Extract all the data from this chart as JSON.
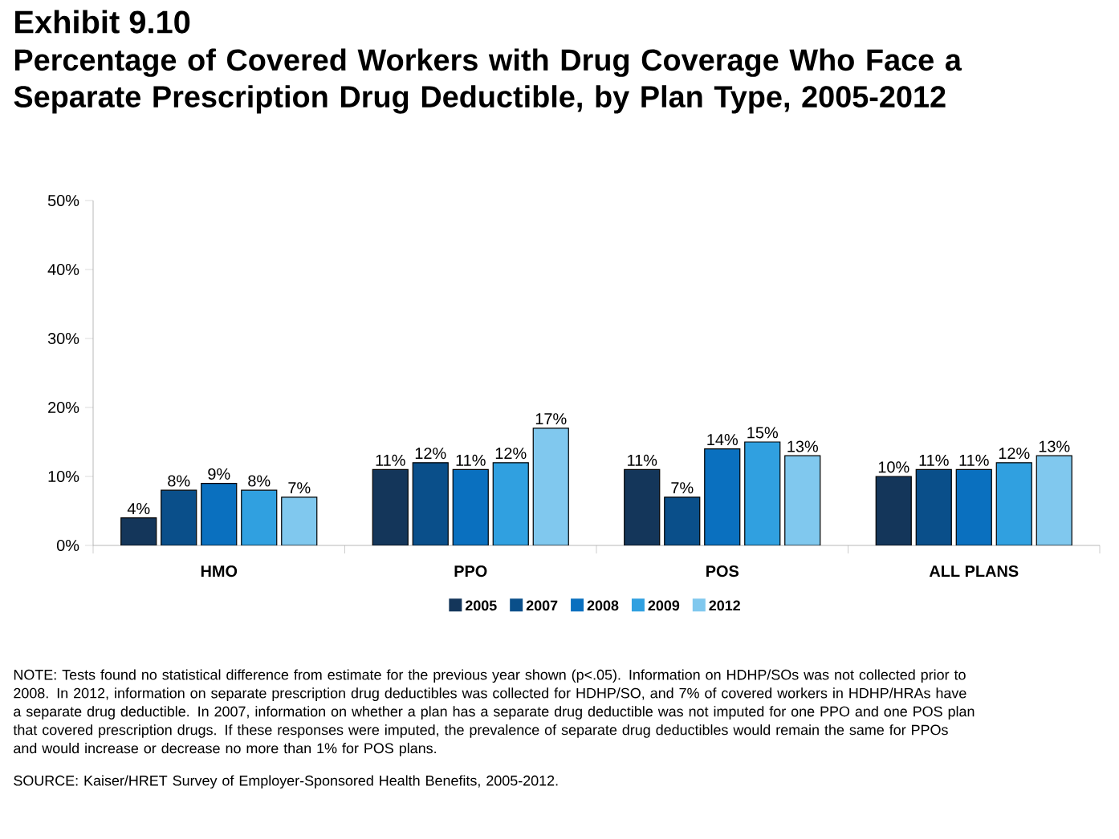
{
  "chart_data": {
    "type": "bar",
    "title": "Exhibit 9.10",
    "subtitle": "Percentage of Covered Workers with Drug Coverage Who Face a Separate Prescription Drug Deductible, by Plan Type, 2005-2012",
    "categories": [
      "HMO",
      "PPO",
      "POS",
      "ALL PLANS"
    ],
    "series": [
      {
        "name": "2005",
        "color": "#14365a",
        "values": [
          4,
          11,
          11,
          10
        ],
        "value_labels": [
          "4%",
          "11%",
          "11%",
          "10%"
        ]
      },
      {
        "name": "2007",
        "color": "#0a4f8a",
        "values": [
          8,
          12,
          7,
          11
        ],
        "value_labels": [
          "8%",
          "12%",
          "7%",
          "11%"
        ]
      },
      {
        "name": "2008",
        "color": "#0a70bf",
        "values": [
          9,
          11,
          14,
          11
        ],
        "value_labels": [
          "9%",
          "11%",
          "14%",
          "11%"
        ]
      },
      {
        "name": "2009",
        "color": "#30a0e0",
        "values": [
          8,
          12,
          15,
          12
        ],
        "value_labels": [
          "8%",
          "12%",
          "15%",
          "12%"
        ]
      },
      {
        "name": "2012",
        "color": "#80c8ee",
        "values": [
          7,
          17,
          13,
          13
        ],
        "value_labels": [
          "7%",
          "17%",
          "13%",
          "13%"
        ]
      }
    ],
    "ylim": [
      0,
      50
    ],
    "yticks": [
      {
        "value": 0,
        "label": "0%"
      },
      {
        "value": 10,
        "label": "10%"
      },
      {
        "value": 20,
        "label": "20%"
      },
      {
        "value": 30,
        "label": "30%"
      },
      {
        "value": 40,
        "label": "40%"
      },
      {
        "value": 50,
        "label": "50%"
      }
    ],
    "legend": "bottom",
    "annotations": [
      "NOTE: Tests found no statistical difference from estimate for the previous year shown (p<.05).  Information on HDHP/SOs was not collected prior to 2008.  In 2012, information on separate prescription drug deductibles was collected for HDHP/SO, and 7% of covered workers in HDHP/HRAs have a separate drug deductible.  In 2007, information on whether a plan has a separate drug deductible was not imputed for one PPO and one POS plan that covered prescription drugs.  If these responses were imputed, the prevalence of separate drug deductibles would remain the same for PPOs and would increase or decrease no more than 1% for POS plans.",
      "SOURCE:  Kaiser/HRET Survey of Employer-Sponsored Health Benefits, 2005-2012."
    ]
  }
}
